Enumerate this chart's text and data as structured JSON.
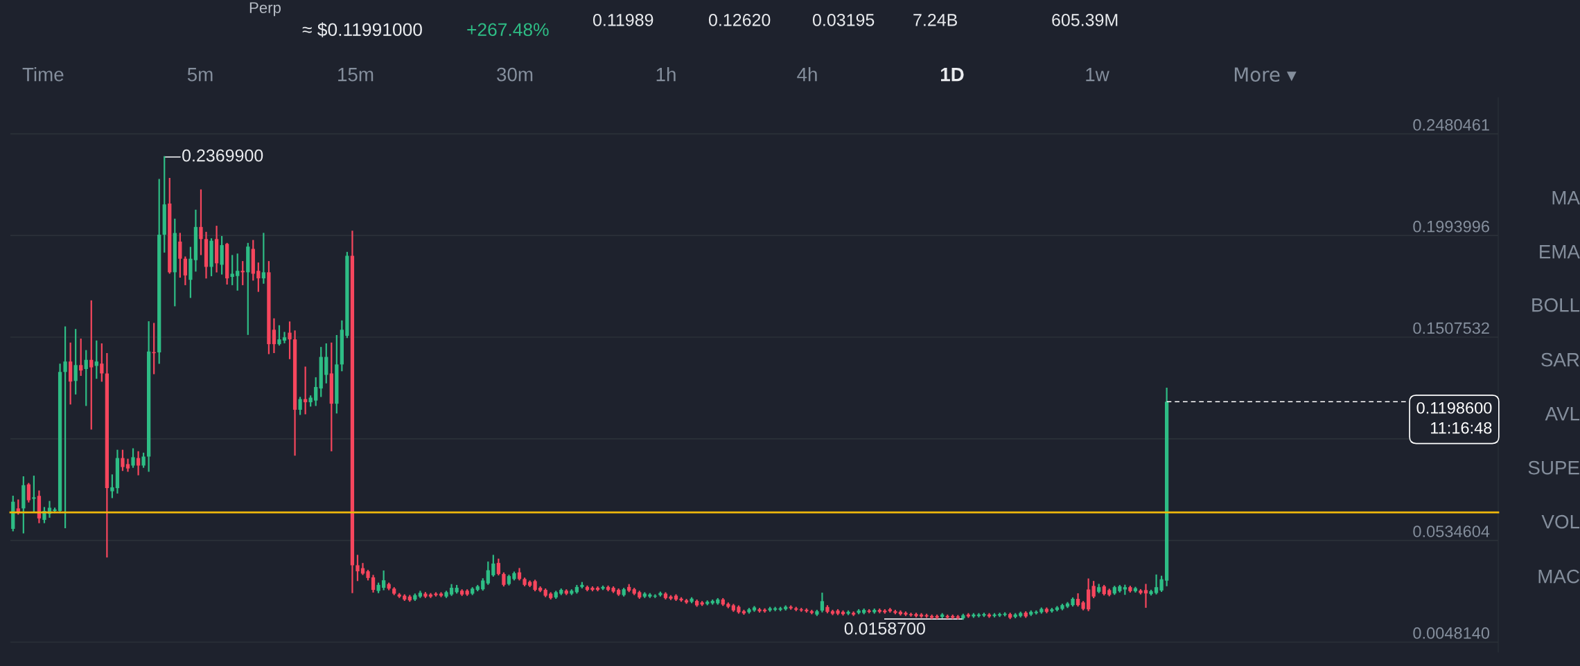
{
  "chart_data": {
    "type": "candlestick",
    "categories": [
      null,
      null,
      null,
      null,
      null,
      null,
      null,
      null,
      null,
      null,
      null,
      null,
      null,
      null,
      null,
      null,
      null,
      null,
      null,
      null,
      null,
      null,
      null,
      null,
      null,
      null,
      null,
      null,
      null,
      null,
      null,
      null,
      null,
      null,
      null,
      null,
      null,
      null,
      null,
      null,
      null,
      null,
      null,
      null,
      null,
      null,
      null,
      null,
      null,
      null,
      null,
      null,
      null,
      null,
      null,
      null,
      null,
      null,
      null,
      null,
      null,
      null,
      null,
      null,
      null,
      null,
      null,
      null,
      null,
      null,
      null,
      null,
      null,
      null,
      null,
      null,
      null,
      null,
      null,
      null,
      null,
      null,
      null,
      null,
      null,
      null,
      null,
      null,
      null,
      null,
      null,
      null,
      null,
      null,
      null,
      null,
      null,
      null,
      null,
      null,
      null,
      null,
      null,
      null,
      null,
      null,
      null,
      null,
      null,
      null,
      null,
      null,
      null,
      null,
      null,
      null,
      null,
      null,
      null,
      null,
      null,
      null,
      null,
      null,
      null,
      null,
      null,
      null,
      null,
      null,
      null,
      null,
      null,
      null,
      null,
      null,
      null,
      null,
      null,
      null,
      null,
      null,
      null,
      null,
      null,
      null,
      null,
      null,
      null,
      null,
      null,
      null,
      null,
      null,
      null,
      null,
      null,
      null,
      null,
      null,
      null,
      null,
      null,
      null,
      null,
      null,
      null,
      null,
      null,
      null,
      null,
      null,
      null,
      null,
      null,
      null,
      null,
      null,
      null,
      null,
      null,
      null,
      null,
      null,
      null,
      null,
      null,
      null,
      null,
      null,
      null,
      null,
      null,
      null,
      null,
      null,
      null,
      null,
      null,
      null,
      null,
      null,
      null,
      null,
      null,
      null,
      null,
      null,
      null,
      null,
      null,
      null,
      null,
      null,
      null,
      null,
      null,
      null,
      null,
      null,
      null,
      null,
      null,
      null,
      null,
      null,
      null,
      null,
      null,
      null,
      null,
      null,
      null,
      null,
      null,
      null,
      null,
      null,
      null,
      null,
      null,
      null,
      null,
      null,
      null,
      null,
      null,
      null,
      null,
      null,
      null,
      null,
      null,
      null,
      null,
      null,
      null,
      null,
      null,
      null,
      null,
      null,
      null,
      null,
      null,
      null,
      null,
      null,
      null,
      null,
      null,
      null,
      null,
      null,
      null,
      null,
      null,
      null,
      null,
      null,
      null,
      null,
      null,
      null,
      null
    ],
    "ohlc": [
      [
        0.059,
        0.0745,
        0.0582,
        0.072
      ],
      [
        0.0688,
        0.0727,
        0.0662,
        0.0669
      ],
      [
        0.0688,
        0.0838,
        0.0572,
        0.0799
      ],
      [
        0.0803,
        0.0806,
        0.072,
        0.0727
      ],
      [
        0.0734,
        0.0841,
        0.0676,
        0.0741
      ],
      [
        0.0748,
        0.077,
        0.0621,
        0.064
      ],
      [
        0.0633,
        0.0691,
        0.0621,
        0.0676
      ],
      [
        0.0662,
        0.072,
        0.0647,
        0.0691
      ],
      [
        0.0676,
        0.0688,
        0.0669,
        0.0683
      ],
      [
        0.0676,
        0.1377,
        0.0669,
        0.1341
      ],
      [
        0.1341,
        0.1555,
        0.0597,
        0.1391
      ],
      [
        0.1391,
        0.1478,
        0.1189,
        0.1295
      ],
      [
        0.1298,
        0.1543,
        0.1237,
        0.1374
      ],
      [
        0.1374,
        0.1497,
        0.1326,
        0.1348
      ],
      [
        0.1355,
        0.1442,
        0.1182,
        0.1399
      ],
      [
        0.1399,
        0.168,
        0.1069,
        0.1363
      ],
      [
        0.137,
        0.1488,
        0.1312,
        0.1391
      ],
      [
        0.1381,
        0.1474,
        0.1298,
        0.1334
      ],
      [
        0.1334,
        0.1428,
        0.0457,
        0.0785
      ],
      [
        0.077,
        0.0847,
        0.0741,
        0.0789
      ],
      [
        0.0785,
        0.0965,
        0.0763,
        0.0929
      ],
      [
        0.0929,
        0.0965,
        0.0871,
        0.0886
      ],
      [
        0.09,
        0.0922,
        0.0867,
        0.0879
      ],
      [
        0.0893,
        0.0972,
        0.0886,
        0.0933
      ],
      [
        0.0929,
        0.0958,
        0.085,
        0.0893
      ],
      [
        0.0893,
        0.0951,
        0.0886,
        0.0936
      ],
      [
        0.0936,
        0.158,
        0.0867,
        0.1439
      ],
      [
        0.1436,
        0.1572,
        0.1334,
        0.1431
      ],
      [
        0.1435,
        0.2261,
        0.1384,
        0.1998
      ],
      [
        0.1998,
        0.23699,
        0.1916,
        0.2143
      ],
      [
        0.2147,
        0.2266,
        0.1815,
        0.1818
      ],
      [
        0.1818,
        0.2071,
        0.1659,
        0.2006
      ],
      [
        0.1965,
        0.2003,
        0.1796,
        0.1883
      ],
      [
        0.1883,
        0.189,
        0.176,
        0.1803
      ],
      [
        0.1782,
        0.1936,
        0.1699,
        0.1883
      ],
      [
        0.1876,
        0.2114,
        0.1825,
        0.2035
      ],
      [
        0.2035,
        0.2211,
        0.1904,
        0.1977
      ],
      [
        0.1977,
        0.2008,
        0.1792,
        0.1844
      ],
      [
        0.1844,
        0.1977,
        0.1803,
        0.1969
      ],
      [
        0.1977,
        0.2037,
        0.1821,
        0.1861
      ],
      [
        0.1854,
        0.1988,
        0.1811,
        0.1948
      ],
      [
        0.1954,
        0.1955,
        0.1763,
        0.1789
      ],
      [
        0.1796,
        0.1897,
        0.176,
        0.1811
      ],
      [
        0.18,
        0.1904,
        0.1734,
        0.1825
      ],
      [
        0.1825,
        0.1868,
        0.176,
        0.1818
      ],
      [
        0.1818,
        0.1955,
        0.1522,
        0.1941
      ],
      [
        0.193,
        0.1969,
        0.1782,
        0.1811
      ],
      [
        0.1825,
        0.1861,
        0.1728,
        0.1789
      ],
      [
        0.1789,
        0.2003,
        0.1767,
        0.1818
      ],
      [
        0.1818,
        0.1868,
        0.143,
        0.1474
      ],
      [
        0.1543,
        0.1594,
        0.1435,
        0.1474
      ],
      [
        0.1474,
        0.1561,
        0.1471,
        0.1497
      ],
      [
        0.1491,
        0.1529,
        0.1482,
        0.1507
      ],
      [
        0.1529,
        0.1579,
        0.1406,
        0.1497
      ],
      [
        0.1497,
        0.1536,
        0.0944,
        0.116
      ],
      [
        0.116,
        0.1218,
        0.1139,
        0.1211
      ],
      [
        0.1211,
        0.1363,
        0.1142,
        0.1196
      ],
      [
        0.1196,
        0.1225,
        0.1179,
        0.1218
      ],
      [
        0.1204,
        0.1312,
        0.1182,
        0.1269
      ],
      [
        0.1262,
        0.1457,
        0.1225,
        0.1413
      ],
      [
        0.1327,
        0.1474,
        0.129,
        0.1413
      ],
      [
        0.1334,
        0.1478,
        0.0965,
        0.1189
      ],
      [
        0.1189,
        0.1514,
        0.1146,
        0.1377
      ],
      [
        0.1377,
        0.1584,
        0.1348,
        0.1543
      ],
      [
        0.1514,
        0.1912,
        0.1507,
        0.1897
      ],
      [
        0.1897,
        0.2013,
        0.0286,
        0.0416
      ],
      [
        0.0416,
        0.0462,
        0.0344,
        0.0387
      ],
      [
        0.0402,
        0.0423,
        0.0373,
        0.0376
      ],
      [
        0.0387,
        0.039,
        0.0347,
        0.0355
      ],
      [
        0.0358,
        0.0366,
        0.0289,
        0.0298
      ],
      [
        0.0293,
        0.0329,
        0.0286,
        0.0322
      ],
      [
        0.0308,
        0.0387,
        0.03,
        0.0344
      ],
      [
        0.0326,
        0.0329,
        0.03,
        0.0304
      ],
      [
        0.0304,
        0.0307,
        0.0277,
        0.028
      ],
      [
        0.0276,
        0.0279,
        0.0263,
        0.0266
      ],
      [
        0.027,
        0.0273,
        0.0249,
        0.0252
      ],
      [
        0.0266,
        0.027,
        0.0245,
        0.0248
      ],
      [
        0.0252,
        0.0277,
        0.0249,
        0.0273
      ],
      [
        0.0266,
        0.029,
        0.0263,
        0.0284
      ],
      [
        0.028,
        0.0284,
        0.0263,
        0.0266
      ],
      [
        0.0276,
        0.0279,
        0.0263,
        0.0266
      ],
      [
        0.028,
        0.0283,
        0.027,
        0.0273
      ],
      [
        0.028,
        0.0283,
        0.0267,
        0.027
      ],
      [
        0.0266,
        0.029,
        0.0263,
        0.0287
      ],
      [
        0.0276,
        0.0322,
        0.0273,
        0.0308
      ],
      [
        0.0287,
        0.0318,
        0.0284,
        0.0308
      ],
      [
        0.0294,
        0.0297,
        0.0273,
        0.0276
      ],
      [
        0.0294,
        0.0297,
        0.0273,
        0.0276
      ],
      [
        0.028,
        0.0307,
        0.0277,
        0.0304
      ],
      [
        0.0298,
        0.0318,
        0.0295,
        0.0315
      ],
      [
        0.0301,
        0.035,
        0.0298,
        0.0343
      ],
      [
        0.0329,
        0.043,
        0.0326,
        0.0392
      ],
      [
        0.0368,
        0.0462,
        0.0365,
        0.0424
      ],
      [
        0.0427,
        0.0444,
        0.0371,
        0.0374
      ],
      [
        0.0374,
        0.0378,
        0.0318,
        0.0322
      ],
      [
        0.0326,
        0.0367,
        0.0323,
        0.0364
      ],
      [
        0.035,
        0.0382,
        0.0347,
        0.0378
      ],
      [
        0.0382,
        0.0399,
        0.0347,
        0.035
      ],
      [
        0.035,
        0.0353,
        0.0319,
        0.0322
      ],
      [
        0.0336,
        0.0339,
        0.0315,
        0.0318
      ],
      [
        0.034,
        0.0343,
        0.0295,
        0.0298
      ],
      [
        0.0308,
        0.0311,
        0.0291,
        0.0294
      ],
      [
        0.0298,
        0.0301,
        0.0267,
        0.027
      ],
      [
        0.028,
        0.0283,
        0.0256,
        0.0259
      ],
      [
        0.0262,
        0.029,
        0.0259,
        0.0287
      ],
      [
        0.028,
        0.0301,
        0.0277,
        0.0298
      ],
      [
        0.0294,
        0.0297,
        0.0277,
        0.028
      ],
      [
        0.028,
        0.0297,
        0.0277,
        0.0294
      ],
      [
        0.0287,
        0.0318,
        0.0284,
        0.0312
      ],
      [
        0.0312,
        0.0332,
        0.0309,
        0.0322
      ],
      [
        0.0312,
        0.0315,
        0.0295,
        0.0298
      ],
      [
        0.0308,
        0.0311,
        0.0295,
        0.0298
      ],
      [
        0.0308,
        0.0311,
        0.0295,
        0.0298
      ],
      [
        0.0304,
        0.0315,
        0.0301,
        0.0312
      ],
      [
        0.0312,
        0.0315,
        0.0295,
        0.0298
      ],
      [
        0.0308,
        0.0311,
        0.0287,
        0.029
      ],
      [
        0.0298,
        0.0301,
        0.0273,
        0.0276
      ],
      [
        0.0273,
        0.0304,
        0.027,
        0.0301
      ],
      [
        0.0312,
        0.0322,
        0.0291,
        0.0294
      ],
      [
        0.0301,
        0.0304,
        0.0277,
        0.028
      ],
      [
        0.0287,
        0.029,
        0.0259,
        0.0262
      ],
      [
        0.0266,
        0.0283,
        0.0263,
        0.028
      ],
      [
        0.0266,
        0.0279,
        0.0263,
        0.0276
      ],
      [
        0.0266,
        0.0273,
        0.0263,
        0.027
      ],
      [
        0.0273,
        0.0286,
        0.027,
        0.0283
      ],
      [
        0.028,
        0.0283,
        0.0256,
        0.0259
      ],
      [
        0.0266,
        0.0269,
        0.0253,
        0.0256
      ],
      [
        0.027,
        0.0273,
        0.0249,
        0.0252
      ],
      [
        0.0256,
        0.0259,
        0.0245,
        0.0248
      ],
      [
        0.0248,
        0.0251,
        0.0235,
        0.0238
      ],
      [
        0.0241,
        0.0259,
        0.0238,
        0.0256
      ],
      [
        0.0245,
        0.0248,
        0.0221,
        0.0224
      ],
      [
        0.0238,
        0.0241,
        0.0225,
        0.0228
      ],
      [
        0.0231,
        0.0244,
        0.0228,
        0.0241
      ],
      [
        0.0234,
        0.0248,
        0.0231,
        0.0245
      ],
      [
        0.0234,
        0.0255,
        0.0231,
        0.0252
      ],
      [
        0.0252,
        0.0255,
        0.0225,
        0.0228
      ],
      [
        0.0231,
        0.0234,
        0.0214,
        0.0217
      ],
      [
        0.0224,
        0.0227,
        0.0197,
        0.02
      ],
      [
        0.0217,
        0.022,
        0.0188,
        0.0191
      ],
      [
        0.0196,
        0.0199,
        0.0183,
        0.0186
      ],
      [
        0.0191,
        0.0208,
        0.0188,
        0.0205
      ],
      [
        0.02,
        0.0217,
        0.0197,
        0.0214
      ],
      [
        0.0205,
        0.0208,
        0.0193,
        0.0196
      ],
      [
        0.0203,
        0.0206,
        0.0193,
        0.0196
      ],
      [
        0.02,
        0.0213,
        0.0197,
        0.021
      ],
      [
        0.0203,
        0.0213,
        0.02,
        0.021
      ],
      [
        0.0203,
        0.0213,
        0.02,
        0.021
      ],
      [
        0.0206,
        0.022,
        0.0203,
        0.0217
      ],
      [
        0.0217,
        0.022,
        0.0207,
        0.021
      ],
      [
        0.021,
        0.0213,
        0.02,
        0.0203
      ],
      [
        0.0205,
        0.0208,
        0.0197,
        0.02
      ],
      [
        0.0203,
        0.0206,
        0.0193,
        0.0196
      ],
      [
        0.0196,
        0.0199,
        0.0185,
        0.0188
      ],
      [
        0.018,
        0.0199,
        0.0177,
        0.0196
      ],
      [
        0.0199,
        0.0281,
        0.0194,
        0.0244
      ],
      [
        0.0216,
        0.0221,
        0.019,
        0.0193
      ],
      [
        0.0196,
        0.0199,
        0.0181,
        0.0184
      ],
      [
        0.0199,
        0.0202,
        0.0181,
        0.0184
      ],
      [
        0.0193,
        0.0196,
        0.0179,
        0.0182
      ],
      [
        0.0184,
        0.0196,
        0.0181,
        0.0193
      ],
      [
        0.0188,
        0.0191,
        0.0177,
        0.018
      ],
      [
        0.0188,
        0.0202,
        0.0185,
        0.0199
      ],
      [
        0.0188,
        0.0205,
        0.0185,
        0.0202
      ],
      [
        0.0199,
        0.0202,
        0.019,
        0.0193
      ],
      [
        0.0191,
        0.0205,
        0.0188,
        0.0202
      ],
      [
        0.0202,
        0.0205,
        0.019,
        0.0193
      ],
      [
        0.0199,
        0.0202,
        0.0188,
        0.0191
      ],
      [
        0.0205,
        0.0208,
        0.0193,
        0.0196
      ],
      [
        0.0196,
        0.0199,
        0.0185,
        0.0188
      ],
      [
        0.0193,
        0.0196,
        0.0179,
        0.0182
      ],
      [
        0.0188,
        0.0191,
        0.0177,
        0.018
      ],
      [
        0.0182,
        0.0185,
        0.0174,
        0.0177
      ],
      [
        0.0182,
        0.0185,
        0.017,
        0.0173
      ],
      [
        0.018,
        0.0183,
        0.0168,
        0.0171
      ],
      [
        0.0177,
        0.018,
        0.0168,
        0.0171
      ],
      [
        0.0173,
        0.0176,
        0.0162,
        0.0165
      ],
      [
        0.0173,
        0.0176,
        0.0162,
        0.0165
      ],
      [
        0.0169,
        0.0183,
        0.0166,
        0.018
      ],
      [
        0.0173,
        0.0176,
        0.0163,
        0.0166
      ],
      [
        0.0173,
        0.0176,
        0.0162,
        0.0165
      ],
      [
        0.0171,
        0.0174,
        0.0161,
        0.0164
      ],
      [
        0.0162,
        0.018,
        0.01587,
        0.0177
      ],
      [
        0.018,
        0.0183,
        0.0168,
        0.0171
      ],
      [
        0.0171,
        0.0183,
        0.0168,
        0.018
      ],
      [
        0.0173,
        0.0183,
        0.017,
        0.018
      ],
      [
        0.0175,
        0.0185,
        0.0172,
        0.0182
      ],
      [
        0.018,
        0.0183,
        0.0168,
        0.0171
      ],
      [
        0.0173,
        0.0183,
        0.017,
        0.018
      ],
      [
        0.0175,
        0.0185,
        0.0172,
        0.0182
      ],
      [
        0.0178,
        0.0187,
        0.0175,
        0.0184
      ],
      [
        0.0182,
        0.0185,
        0.0162,
        0.0165
      ],
      [
        0.0169,
        0.0183,
        0.0166,
        0.018
      ],
      [
        0.0173,
        0.019,
        0.017,
        0.0187
      ],
      [
        0.0189,
        0.0192,
        0.0168,
        0.0171
      ],
      [
        0.018,
        0.0196,
        0.0177,
        0.0193
      ],
      [
        0.0187,
        0.0196,
        0.0184,
        0.0193
      ],
      [
        0.0191,
        0.021,
        0.0188,
        0.0207
      ],
      [
        0.0207,
        0.021,
        0.019,
        0.0193
      ],
      [
        0.0196,
        0.0208,
        0.0193,
        0.0205
      ],
      [
        0.0202,
        0.0217,
        0.0199,
        0.0214
      ],
      [
        0.0207,
        0.0228,
        0.0204,
        0.0225
      ],
      [
        0.0218,
        0.0236,
        0.0215,
        0.0233
      ],
      [
        0.0225,
        0.0258,
        0.0222,
        0.0255
      ],
      [
        0.0255,
        0.0278,
        0.0222,
        0.0225
      ],
      [
        0.0238,
        0.0241,
        0.0204,
        0.0207
      ],
      [
        0.03,
        0.0349,
        0.02,
        0.0205
      ],
      [
        0.0317,
        0.0337,
        0.0262,
        0.0266
      ],
      [
        0.0289,
        0.0323,
        0.0286,
        0.0311
      ],
      [
        0.0315,
        0.0318,
        0.0275,
        0.0278
      ],
      [
        0.0297,
        0.03,
        0.0271,
        0.0274
      ],
      [
        0.0281,
        0.0314,
        0.0278,
        0.0311
      ],
      [
        0.0292,
        0.0318,
        0.0289,
        0.0315
      ],
      [
        0.03,
        0.0319,
        0.0278,
        0.0311
      ],
      [
        0.0311,
        0.0314,
        0.0289,
        0.0292
      ],
      [
        0.0292,
        0.0309,
        0.0289,
        0.0306
      ],
      [
        0.0295,
        0.0298,
        0.028,
        0.0283
      ],
      [
        0.0297,
        0.0323,
        0.0216,
        0.0281
      ],
      [
        0.0278,
        0.0295,
        0.0275,
        0.0292
      ],
      [
        0.0283,
        0.0368,
        0.028,
        0.0311
      ],
      [
        0.0295,
        0.0362,
        0.0292,
        0.0349
      ],
      [
        0.0342,
        0.1262,
        0.03195,
        0.11986
      ],
      null,
      null,
      null,
      null,
      null,
      null,
      null,
      null,
      null,
      null,
      null,
      null,
      null,
      null,
      null,
      null,
      null,
      null,
      null,
      null,
      null,
      null,
      null,
      null,
      null,
      null,
      null,
      null,
      null,
      null,
      null,
      null,
      null,
      null,
      null,
      null,
      null,
      null,
      null,
      null,
      null,
      null,
      null,
      null,
      null,
      null,
      null,
      null,
      null,
      null,
      null,
      null,
      null,
      null,
      null,
      null,
      null,
      null,
      null,
      null,
      null,
      null,
      null
    ],
    "ylim": [
      0.0,
      0.2654
    ],
    "yticks": [
      0.2480461,
      0.1993996,
      0.1507532,
      {
        "value": 0.1021068,
        "label": null
      },
      0.0534604,
      {
        "value": 0.004814,
        "label": "0.0048140"
      }
    ],
    "tick_labels": "y",
    "grid": "y",
    "ref_lines": [
      {
        "axis": "y",
        "value": 0.0669,
        "color": "#f0b90b"
      },
      {
        "axis": "y",
        "value": 0.11986,
        "label": "0.1198600\n11:16:48",
        "color": "#ffffff",
        "line_style": "dashed"
      }
    ],
    "annotations": [
      "Perp",
      "≈ $0.11991000",
      "+267.48%",
      "0.11989",
      "0.12620",
      "0.03195",
      "7.24B",
      "605.39M",
      "Time",
      "5m",
      "15m",
      "30m",
      "1h",
      "4h",
      "1D",
      "1w",
      "More ▾",
      "MA",
      "EMA",
      "BOLL",
      "SAR",
      "AVL",
      "SUPE",
      "VOL",
      "MAC",
      "0.2369900",
      "0.0158700"
    ]
  }
}
